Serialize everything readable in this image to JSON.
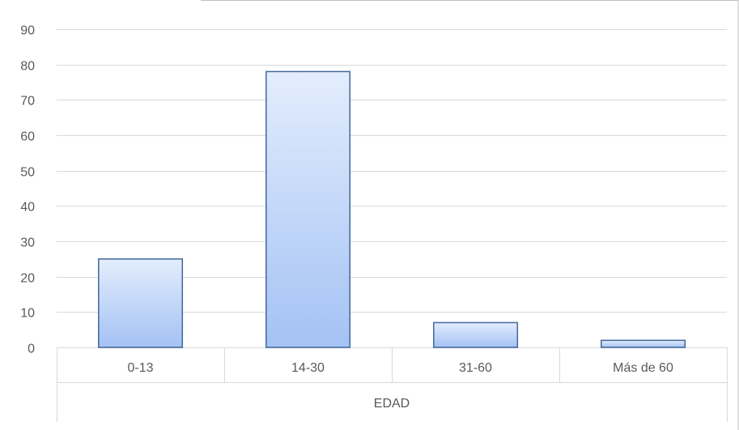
{
  "chart_data": {
    "type": "bar",
    "title": "",
    "xlabel": "EDAD",
    "ylabel": "",
    "categories": [
      "0-13",
      "14-30",
      "31-60",
      "Más de 60"
    ],
    "values": [
      25,
      78,
      7,
      2
    ],
    "ylim": [
      0,
      90
    ],
    "yticks": [
      0,
      10,
      20,
      30,
      40,
      50,
      60,
      70,
      80,
      90
    ],
    "grid": true,
    "legend": "none",
    "colors": {
      "bar_fill_top": "#e3edfd",
      "bar_fill_bottom": "#a4c2f4",
      "bar_stroke": "#41679b",
      "grid": "#d9d9d9",
      "frame": "#bfbfbf",
      "text": "#595959"
    }
  }
}
